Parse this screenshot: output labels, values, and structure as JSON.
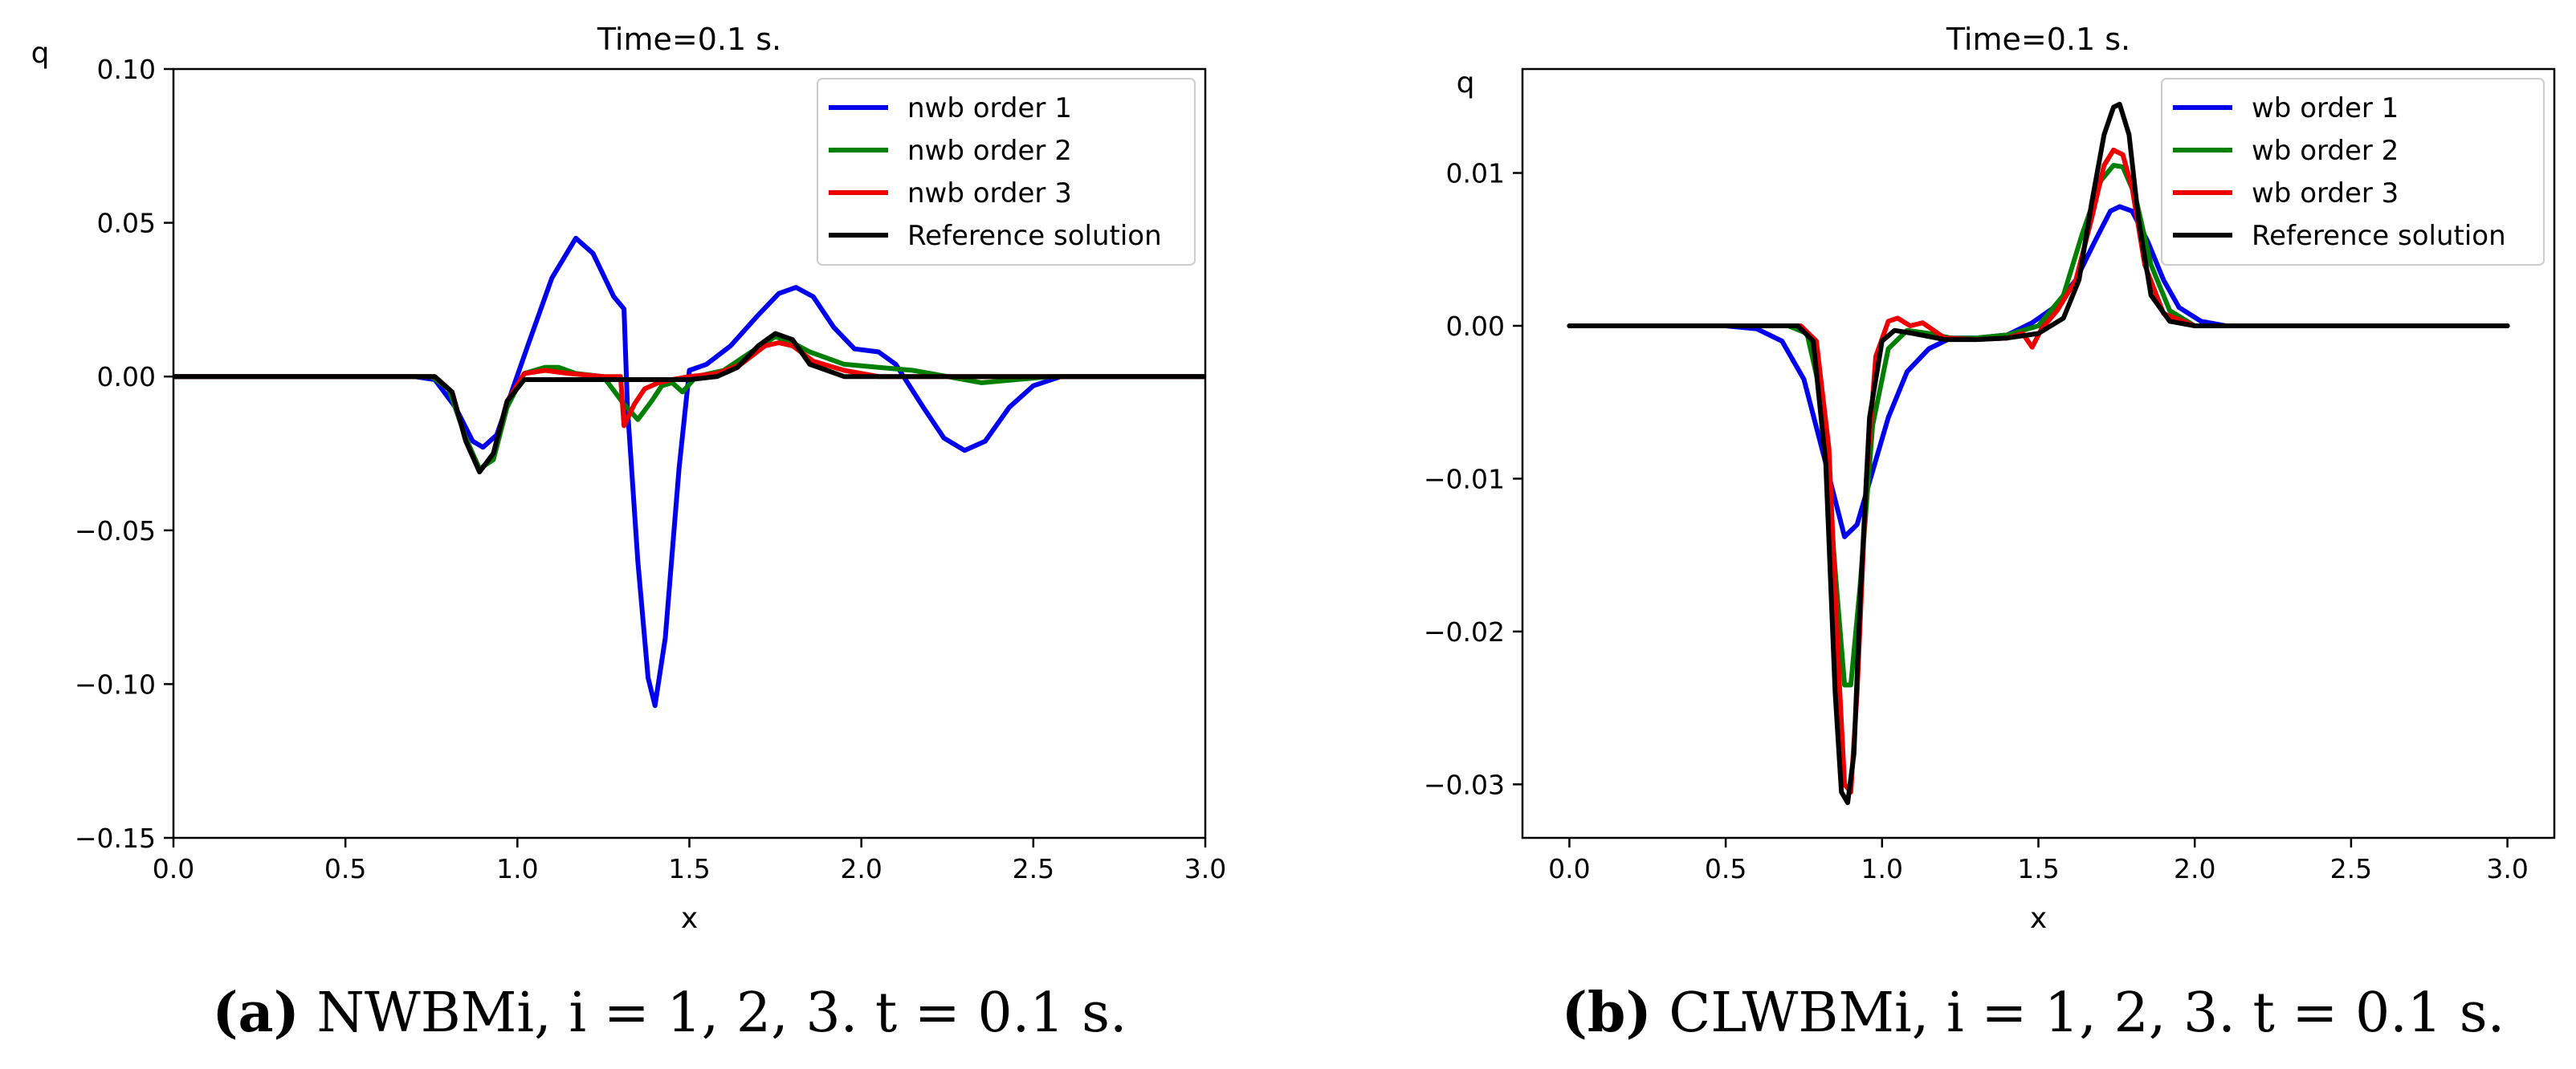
{
  "colors": {
    "order1": "#0000ee",
    "order2": "#007f00",
    "order3": "#ee0000",
    "reference": "#000000"
  },
  "chart_data": [
    {
      "type": "line",
      "title": "Time=0.1 s.",
      "xlabel": "x",
      "ylabel": "q",
      "xlim": [
        0.0,
        3.0
      ],
      "ylim": [
        -0.15,
        0.1
      ],
      "xticks": [
        "0.0",
        "0.5",
        "1.0",
        "1.5",
        "2.0",
        "2.5",
        "3.0"
      ],
      "yticks": [
        "−0.15",
        "−0.10",
        "−0.05",
        "0.00",
        "0.05",
        "0.10"
      ],
      "xtick_values": [
        0.0,
        0.5,
        1.0,
        1.5,
        2.0,
        2.5,
        3.0
      ],
      "ytick_values": [
        -0.15,
        -0.1,
        -0.05,
        0.0,
        0.05,
        0.1
      ],
      "legend": "top-right",
      "grid": false,
      "series": [
        {
          "name": "nwb order 1",
          "color_key": "order1",
          "x": [
            0.0,
            0.7,
            0.76,
            0.82,
            0.87,
            0.9,
            0.94,
            0.98,
            1.03,
            1.1,
            1.17,
            1.22,
            1.28,
            1.31,
            1.32,
            1.35,
            1.38,
            1.4,
            1.43,
            1.47,
            1.5,
            1.55,
            1.62,
            1.7,
            1.76,
            1.81,
            1.86,
            1.92,
            1.98,
            2.05,
            2.1,
            2.18,
            2.24,
            2.3,
            2.36,
            2.43,
            2.5,
            2.58,
            3.0
          ],
          "y": [
            0.0,
            0.0,
            -0.001,
            -0.01,
            -0.021,
            -0.023,
            -0.019,
            -0.006,
            0.01,
            0.032,
            0.045,
            0.04,
            0.026,
            0.022,
            -0.01,
            -0.06,
            -0.098,
            -0.107,
            -0.085,
            -0.03,
            0.002,
            0.004,
            0.01,
            0.02,
            0.027,
            0.029,
            0.026,
            0.016,
            0.009,
            0.008,
            0.004,
            -0.01,
            -0.02,
            -0.024,
            -0.021,
            -0.01,
            -0.003,
            0.0,
            0.0
          ]
        },
        {
          "name": "nwb order 2",
          "color_key": "order2",
          "x": [
            0.0,
            0.75,
            0.8,
            0.85,
            0.89,
            0.93,
            0.97,
            1.02,
            1.08,
            1.12,
            1.17,
            1.25,
            1.31,
            1.35,
            1.39,
            1.42,
            1.45,
            1.48,
            1.52,
            1.6,
            1.68,
            1.75,
            1.8,
            1.85,
            1.95,
            2.05,
            2.15,
            2.25,
            2.35,
            2.45,
            2.55,
            3.0
          ],
          "y": [
            0.0,
            0.0,
            -0.004,
            -0.02,
            -0.03,
            -0.027,
            -0.01,
            0.001,
            0.003,
            0.003,
            0.001,
            0.0,
            -0.009,
            -0.014,
            -0.008,
            -0.003,
            -0.002,
            -0.005,
            0.0,
            0.002,
            0.008,
            0.013,
            0.011,
            0.008,
            0.004,
            0.003,
            0.002,
            0.0,
            -0.002,
            -0.001,
            0.0,
            0.0
          ]
        },
        {
          "name": "nwb order 3",
          "color_key": "order3",
          "x": [
            0.0,
            0.76,
            0.81,
            0.85,
            0.89,
            0.93,
            0.97,
            1.02,
            1.08,
            1.15,
            1.25,
            1.3,
            1.31,
            1.34,
            1.37,
            1.41,
            1.45,
            1.5,
            1.58,
            1.65,
            1.72,
            1.76,
            1.8,
            1.86,
            1.95,
            2.05,
            3.0
          ],
          "y": [
            0.0,
            0.0,
            -0.005,
            -0.021,
            -0.031,
            -0.025,
            -0.008,
            0.001,
            0.002,
            0.001,
            0.0,
            0.0,
            -0.016,
            -0.009,
            -0.004,
            -0.002,
            -0.001,
            0.0,
            0.001,
            0.004,
            0.01,
            0.011,
            0.01,
            0.005,
            0.002,
            0.0,
            0.0
          ]
        },
        {
          "name": "Reference solution",
          "color_key": "reference",
          "x": [
            0.0,
            0.76,
            0.81,
            0.85,
            0.89,
            0.93,
            0.97,
            1.02,
            1.1,
            1.2,
            1.3,
            1.4,
            1.5,
            1.58,
            1.64,
            1.7,
            1.75,
            1.8,
            1.85,
            1.95,
            3.0
          ],
          "y": [
            0.0,
            0.0,
            -0.005,
            -0.021,
            -0.031,
            -0.025,
            -0.008,
            -0.001,
            -0.001,
            -0.001,
            -0.001,
            -0.001,
            -0.001,
            0.0,
            0.003,
            0.01,
            0.014,
            0.012,
            0.004,
            0.0,
            0.0
          ]
        }
      ]
    },
    {
      "type": "line",
      "title": "Time=0.1 s.",
      "xlabel": "x",
      "ylabel": "q",
      "xlim": [
        -0.15,
        3.15
      ],
      "ylim": [
        -0.0335,
        0.0168
      ],
      "xticks": [
        "0.0",
        "0.5",
        "1.0",
        "1.5",
        "2.0",
        "2.5",
        "3.0"
      ],
      "yticks": [
        "−0.03",
        "−0.02",
        "−0.01",
        "0.00",
        "0.01"
      ],
      "xtick_values": [
        0.0,
        0.5,
        1.0,
        1.5,
        2.0,
        2.5,
        3.0
      ],
      "ytick_values": [
        -0.03,
        -0.02,
        -0.01,
        0.0,
        0.01
      ],
      "legend": "top-right",
      "grid": false,
      "series": [
        {
          "name": "wb order 1",
          "color_key": "order1",
          "x": [
            0.0,
            0.5,
            0.6,
            0.68,
            0.75,
            0.82,
            0.88,
            0.92,
            0.97,
            1.02,
            1.08,
            1.15,
            1.22,
            1.3,
            1.4,
            1.48,
            1.55,
            1.62,
            1.68,
            1.73,
            1.76,
            1.8,
            1.85,
            1.9,
            1.95,
            2.02,
            2.1,
            3.0
          ],
          "y": [
            0.0,
            0.0,
            -0.0002,
            -0.001,
            -0.0035,
            -0.009,
            -0.0138,
            -0.013,
            -0.0095,
            -0.006,
            -0.003,
            -0.0015,
            -0.0008,
            -0.0008,
            -0.0006,
            0.0002,
            0.0012,
            0.003,
            0.0055,
            0.0075,
            0.0078,
            0.0075,
            0.0055,
            0.003,
            0.0012,
            0.0003,
            0.0,
            0.0
          ]
        },
        {
          "name": "wb order 2",
          "color_key": "order2",
          "x": [
            0.0,
            0.7,
            0.76,
            0.81,
            0.85,
            0.88,
            0.9,
            0.93,
            0.97,
            1.02,
            1.08,
            1.15,
            1.22,
            1.3,
            1.4,
            1.5,
            1.58,
            1.64,
            1.7,
            1.74,
            1.77,
            1.81,
            1.86,
            1.92,
            2.0,
            3.0
          ],
          "y": [
            0.0,
            0.0,
            -0.0005,
            -0.005,
            -0.016,
            -0.0235,
            -0.0235,
            -0.017,
            -0.0065,
            -0.0015,
            -0.0003,
            -0.0005,
            -0.0008,
            -0.0008,
            -0.0006,
            0.0,
            0.002,
            0.006,
            0.0095,
            0.0105,
            0.0104,
            0.0085,
            0.004,
            0.001,
            0.0,
            0.0
          ]
        },
        {
          "name": "wb order 3",
          "color_key": "order3",
          "x": [
            0.0,
            0.74,
            0.79,
            0.83,
            0.86,
            0.88,
            0.9,
            0.92,
            0.95,
            0.98,
            1.02,
            1.05,
            1.09,
            1.13,
            1.2,
            1.3,
            1.4,
            1.45,
            1.48,
            1.51,
            1.56,
            1.62,
            1.67,
            1.71,
            1.74,
            1.77,
            1.8,
            1.84,
            1.9,
            2.0,
            3.0
          ],
          "y": [
            0.0,
            0.0,
            -0.001,
            -0.008,
            -0.022,
            -0.03,
            -0.0305,
            -0.024,
            -0.01,
            -0.002,
            0.0003,
            0.0005,
            0.0,
            0.0002,
            -0.0008,
            -0.0009,
            -0.0008,
            -0.0005,
            -0.0014,
            -0.0002,
            0.001,
            0.003,
            0.007,
            0.0105,
            0.0115,
            0.0112,
            0.009,
            0.004,
            0.0008,
            0.0,
            0.0
          ]
        },
        {
          "name": "Reference solution",
          "color_key": "reference",
          "x": [
            0.0,
            0.73,
            0.78,
            0.82,
            0.85,
            0.87,
            0.89,
            0.91,
            0.93,
            0.96,
            1.0,
            1.04,
            1.1,
            1.2,
            1.3,
            1.4,
            1.5,
            1.58,
            1.63,
            1.67,
            1.71,
            1.74,
            1.76,
            1.79,
            1.82,
            1.86,
            1.92,
            2.0,
            3.0
          ],
          "y": [
            0.0,
            0.0,
            -0.001,
            -0.009,
            -0.024,
            -0.0305,
            -0.0312,
            -0.028,
            -0.018,
            -0.006,
            -0.001,
            -0.0003,
            -0.0005,
            -0.0009,
            -0.0009,
            -0.0008,
            -0.0005,
            0.0005,
            0.003,
            0.008,
            0.0125,
            0.0143,
            0.0145,
            0.0125,
            0.007,
            0.002,
            0.0003,
            0.0,
            0.0
          ]
        }
      ]
    }
  ],
  "captions": [
    {
      "label": "(a)",
      "text": " NWBMi, i = 1, 2, 3. t = 0.1 s."
    },
    {
      "label": "(b)",
      "text": " CLWBMi, i = 1, 2, 3. t = 0.1 s."
    }
  ]
}
